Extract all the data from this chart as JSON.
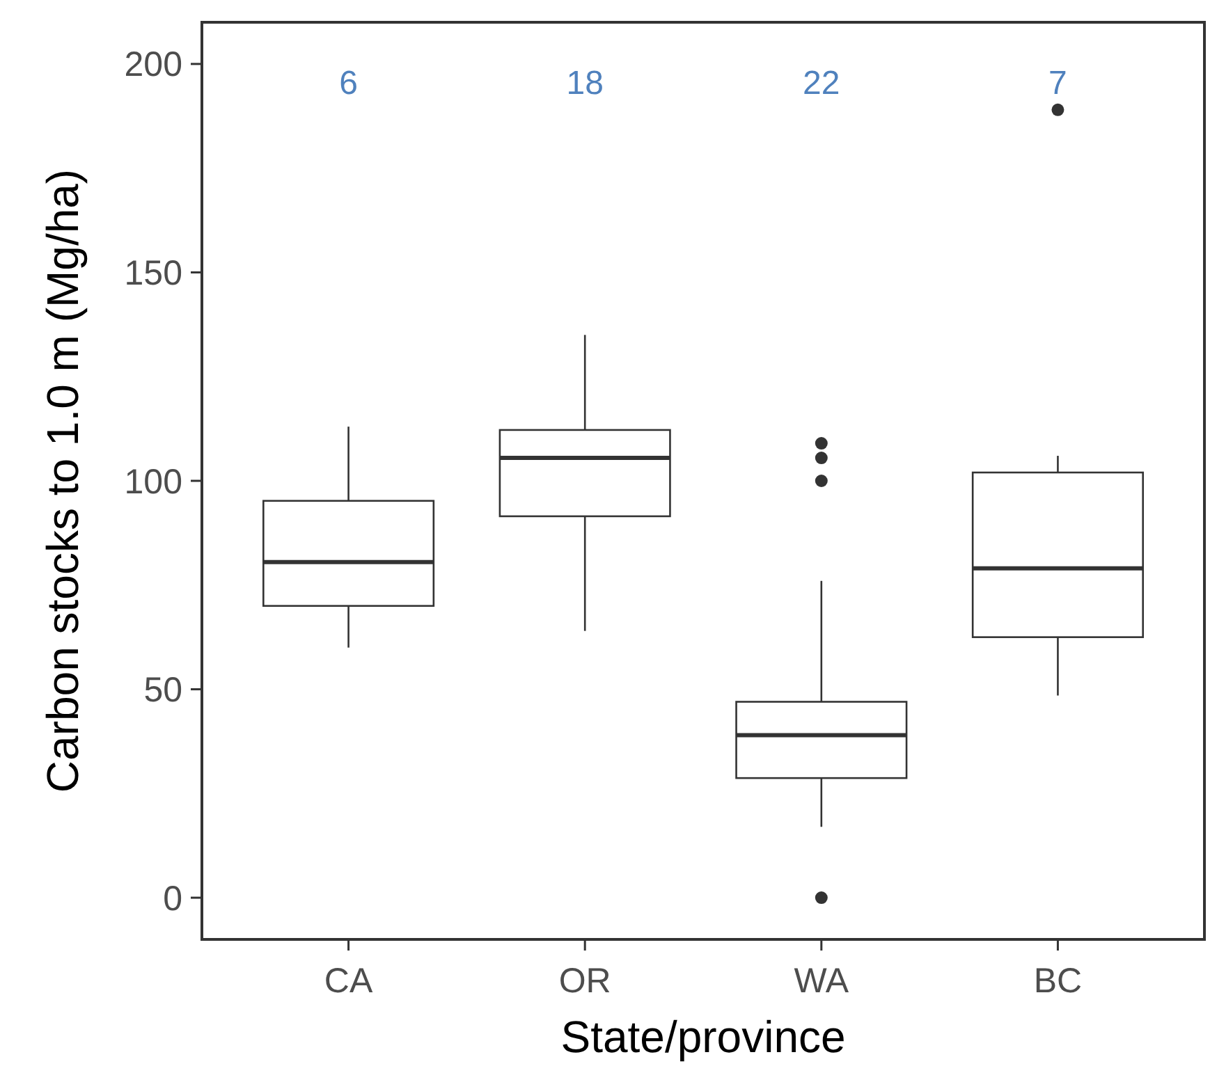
{
  "chart_data": {
    "type": "box",
    "xlabel": "State/province",
    "ylabel": "Carbon stocks to 1.0 m (Mg/ha)",
    "categories": [
      "CA",
      "OR",
      "WA",
      "BC"
    ],
    "ylim": [
      -10,
      210
    ],
    "yticks": [
      0,
      50,
      100,
      150,
      200
    ],
    "grid": false,
    "color": "#333333",
    "boxes": [
      {
        "low": 60,
        "q1": 70,
        "median": 80.5,
        "q3": 95.2,
        "high": 113
      },
      {
        "low": 64,
        "q1": 91.5,
        "median": 105.5,
        "q3": 112.2,
        "high": 135
      },
      {
        "low": 17,
        "q1": 28.7,
        "median": 39,
        "q3": 47,
        "high": 76,
        "outliers": [
          0,
          100,
          105.5,
          109
        ]
      },
      {
        "low": 48.5,
        "q1": 62.5,
        "median": 79,
        "q3": 102,
        "high": 106,
        "outliers": [
          189
        ]
      }
    ],
    "annotations": [
      "6",
      "18",
      "22",
      "7"
    ]
  }
}
